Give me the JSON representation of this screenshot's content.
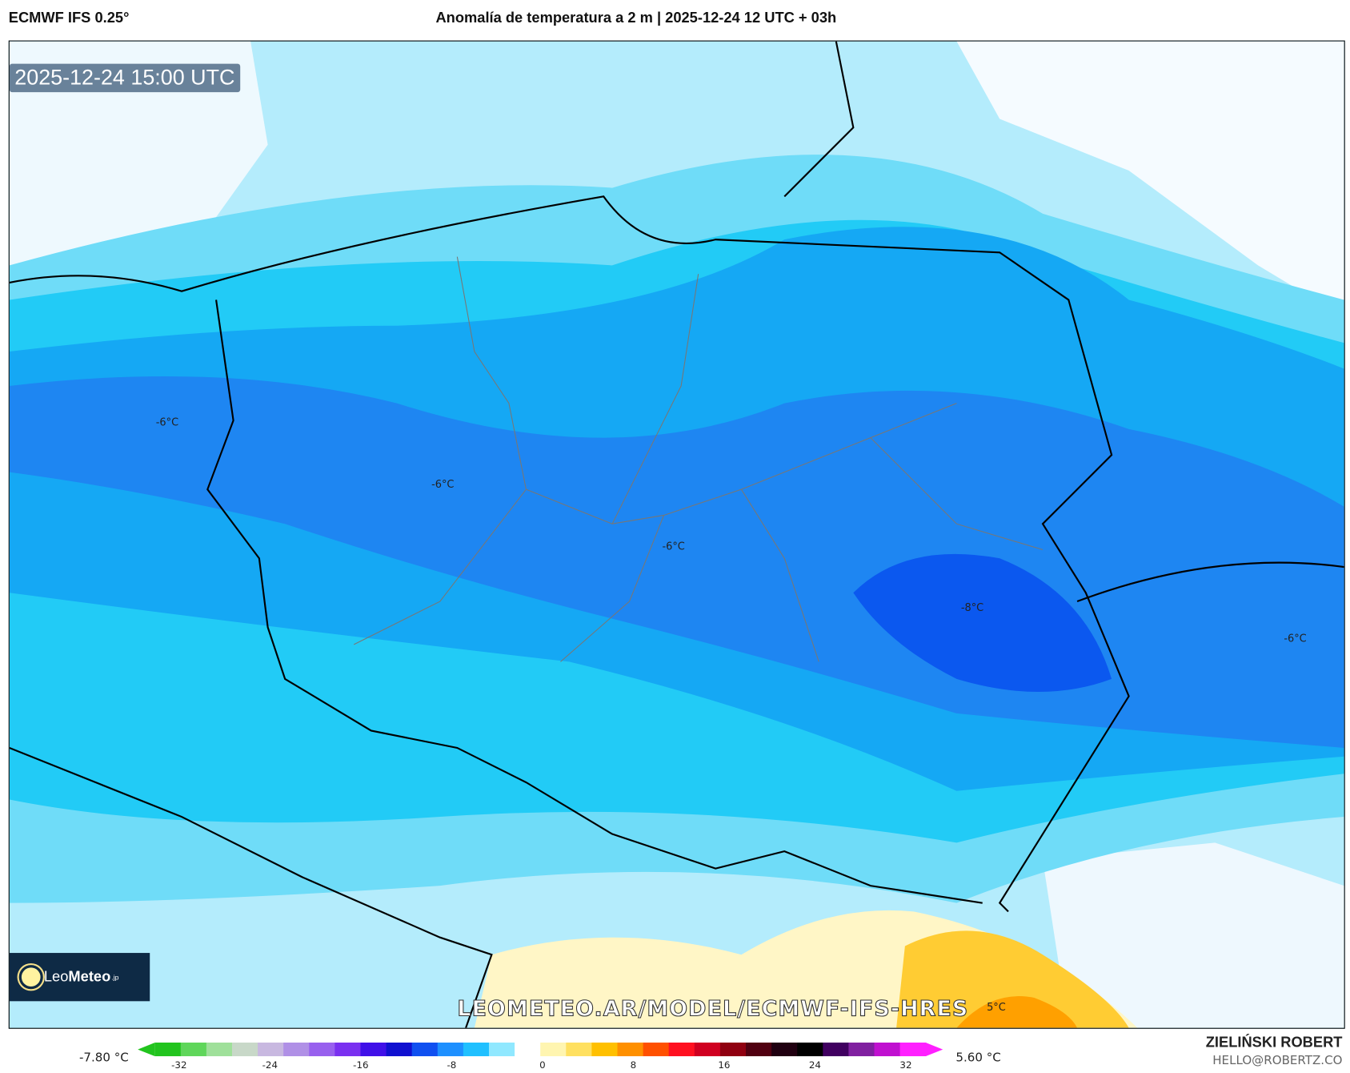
{
  "header": {
    "model": "ECMWF IFS 0.25°",
    "title": "Anomalía de temperatura a 2 m | 2025-12-24 12 UTC + 03h"
  },
  "map": {
    "valid_time": "2025-12-24 15:00 UTC",
    "contour_labels": [
      "-6°C",
      "-6°C",
      "-6°C",
      "-8°C",
      "-6°C",
      "5°C"
    ],
    "watermark": "LEOMETEO.AR/MODEL/ECMWF-IFS-HRES",
    "logo": {
      "text_light": "Leo",
      "text_bold": "Meteo",
      "suffix": ".jp"
    }
  },
  "colorbar": {
    "min_label": "-7.80 °C",
    "max_label": "5.60 °C",
    "ticks": [
      "-32",
      "-24",
      "-16",
      "-8",
      "0",
      "8",
      "16",
      "24",
      "32"
    ],
    "colors": [
      "#22c41e",
      "#5fd65a",
      "#9fe09a",
      "#c8d8c8",
      "#c8b8e0",
      "#b090e6",
      "#9860ee",
      "#7a30f0",
      "#4010e8",
      "#1010d0",
      "#1050f0",
      "#1e90ff",
      "#20c0ff",
      "#90e8ff",
      "#ffffff",
      "#fff5b0",
      "#ffe060",
      "#ffc000",
      "#ff9000",
      "#ff5000",
      "#ff1020",
      "#d00020",
      "#900010",
      "#500010",
      "#200010",
      "#000000",
      "#400060",
      "#8020a0",
      "#c010d0",
      "#ff20ff"
    ]
  },
  "footer": {
    "author": "ZIELIŃSKI ROBERT",
    "email": "HELLO@ROBERTZ.CO"
  }
}
